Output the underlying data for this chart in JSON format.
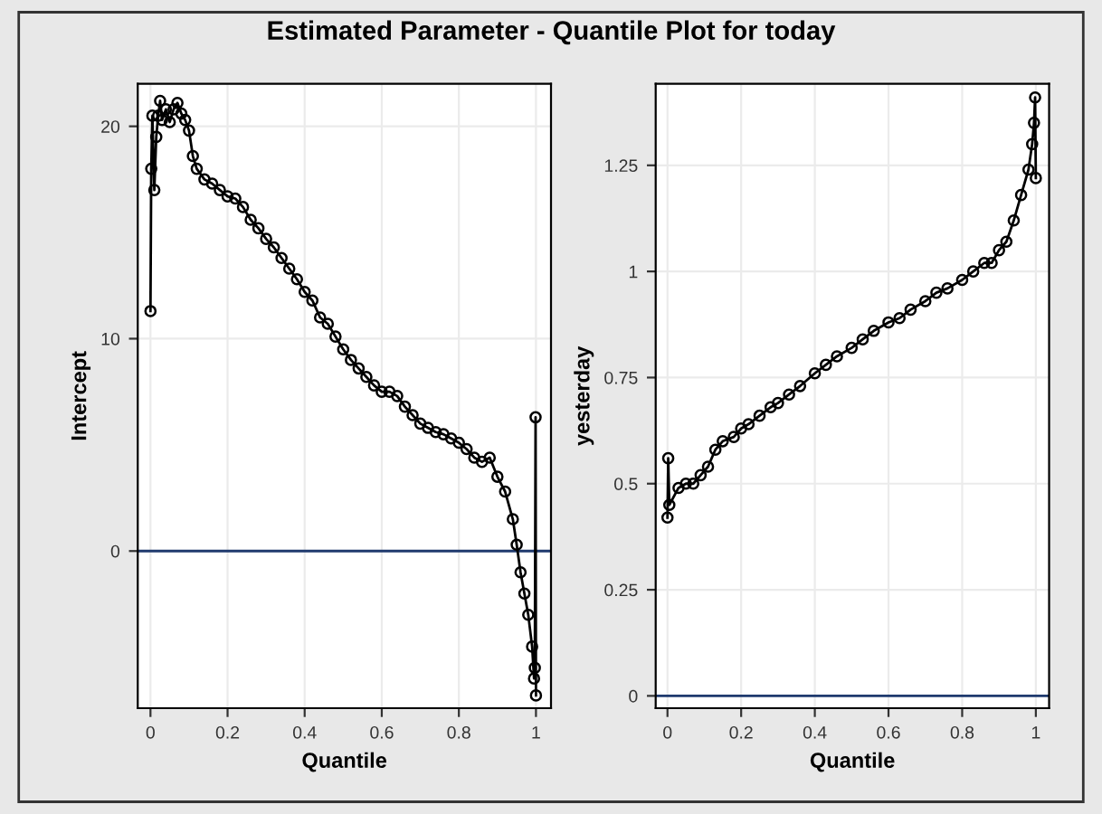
{
  "chart_data": [
    {
      "type": "line",
      "title": "Estimated Parameter - Quantile Plot for today",
      "xlabel": "Quantile",
      "ylabel": "Intercept",
      "marker": "circle",
      "grid": true,
      "xlim": [
        -0.033,
        1.039
      ],
      "ylim": [
        -7.4,
        22
      ],
      "xticks": [
        0,
        0.2,
        0.4,
        0.6,
        0.8,
        1
      ],
      "yticks": [
        0,
        10,
        20
      ],
      "x": [
        0,
        0.002,
        0.005,
        0.01,
        0.015,
        0.02,
        0.025,
        0.03,
        0.04,
        0.05,
        0.06,
        0.07,
        0.08,
        0.09,
        0.1,
        0.11,
        0.12,
        0.14,
        0.16,
        0.18,
        0.2,
        0.22,
        0.24,
        0.26,
        0.28,
        0.3,
        0.32,
        0.34,
        0.36,
        0.38,
        0.4,
        0.42,
        0.44,
        0.46,
        0.48,
        0.5,
        0.52,
        0.54,
        0.56,
        0.58,
        0.6,
        0.62,
        0.64,
        0.66,
        0.68,
        0.7,
        0.72,
        0.74,
        0.76,
        0.78,
        0.8,
        0.82,
        0.84,
        0.86,
        0.88,
        0.9,
        0.92,
        0.94,
        0.95,
        0.96,
        0.97,
        0.98,
        0.99,
        0.995,
        0.997,
        0.999,
        1
      ],
      "series": [
        {
          "color": "#000000",
          "values": [
            11.3,
            18,
            20.5,
            17,
            19.5,
            20.5,
            21.2,
            20.3,
            20.8,
            20.2,
            20.8,
            21.1,
            20.6,
            20.3,
            19.8,
            18.6,
            18,
            17.5,
            17.3,
            17,
            16.7,
            16.6,
            16.2,
            15.6,
            15.2,
            14.7,
            14.3,
            13.8,
            13.3,
            12.8,
            12.2,
            11.8,
            11,
            10.7,
            10.1,
            9.5,
            9,
            8.6,
            8.2,
            7.8,
            7.5,
            7.5,
            7.3,
            6.8,
            6.4,
            6,
            5.8,
            5.6,
            5.5,
            5.3,
            5.1,
            4.8,
            4.4,
            4.2,
            4.4,
            3.5,
            2.8,
            1.5,
            0.3,
            -1,
            -2,
            -3,
            -4.5,
            -6,
            -5.5,
            6.3,
            -6.8
          ]
        }
      ],
      "ref_lines": [
        {
          "axis": "y",
          "value": 0,
          "color": "#1f3a6e"
        }
      ]
    },
    {
      "type": "line",
      "xlabel": "Quantile",
      "ylabel": "yesterday",
      "marker": "circle",
      "grid": true,
      "xlim": [
        -0.032,
        1.036
      ],
      "ylim": [
        -0.029,
        1.442
      ],
      "xticks": [
        0,
        0.2,
        0.4,
        0.6,
        0.8,
        1
      ],
      "yticks": [
        0,
        0.25,
        0.5,
        0.75,
        1,
        1.25
      ],
      "x": [
        0,
        0.002,
        0.005,
        0.03,
        0.05,
        0.07,
        0.09,
        0.11,
        0.13,
        0.15,
        0.18,
        0.2,
        0.22,
        0.25,
        0.28,
        0.3,
        0.33,
        0.36,
        0.4,
        0.43,
        0.46,
        0.5,
        0.53,
        0.56,
        0.6,
        0.63,
        0.66,
        0.7,
        0.73,
        0.76,
        0.8,
        0.83,
        0.86,
        0.88,
        0.9,
        0.92,
        0.94,
        0.96,
        0.98,
        0.99,
        0.995,
        0.998,
        1
      ],
      "series": [
        {
          "color": "#000000",
          "values": [
            0.42,
            0.56,
            0.45,
            0.49,
            0.5,
            0.5,
            0.52,
            0.54,
            0.58,
            0.6,
            0.61,
            0.63,
            0.64,
            0.66,
            0.68,
            0.69,
            0.71,
            0.73,
            0.76,
            0.78,
            0.8,
            0.82,
            0.84,
            0.86,
            0.88,
            0.89,
            0.91,
            0.93,
            0.95,
            0.96,
            0.98,
            1,
            1.02,
            1.02,
            1.05,
            1.07,
            1.12,
            1.18,
            1.24,
            1.3,
            1.35,
            1.41,
            1.22
          ]
        }
      ],
      "ref_lines": [
        {
          "axis": "y",
          "value": 0,
          "color": "#1f3a6e"
        }
      ]
    }
  ]
}
